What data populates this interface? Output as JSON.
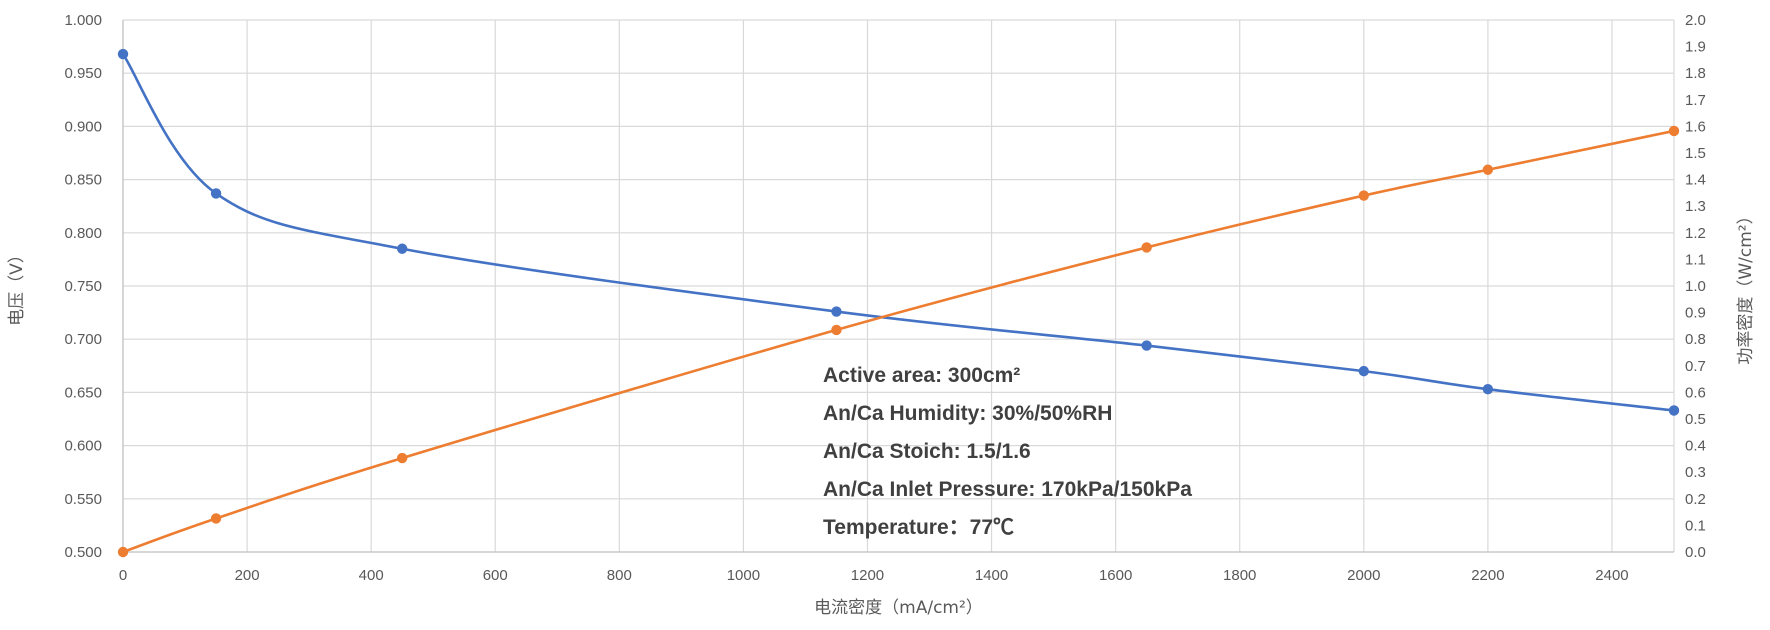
{
  "chart_data": {
    "type": "line",
    "title": "",
    "xlabel": "电流密度（mA/cm²）",
    "ylabel": "电压（V）",
    "y2label": "功率密度（W/cm²）",
    "xlim": [
      0,
      2500
    ],
    "ylim": [
      0.5,
      1.0
    ],
    "y2lim": [
      0.0,
      2.0
    ],
    "x_ticks": [
      0,
      200,
      400,
      600,
      800,
      1000,
      1200,
      1400,
      1600,
      1800,
      2000,
      2200,
      2400
    ],
    "y_ticks": [
      "0.500",
      "0.550",
      "0.600",
      "0.650",
      "0.700",
      "0.750",
      "0.800",
      "0.850",
      "0.900",
      "0.950",
      "1.000"
    ],
    "y2_ticks": [
      "0.0",
      "0.1",
      "0.2",
      "0.3",
      "0.4",
      "0.5",
      "0.6",
      "0.7",
      "0.8",
      "0.9",
      "1.0",
      "1.1",
      "1.2",
      "1.3",
      "1.4",
      "1.5",
      "1.6",
      "1.7",
      "1.8",
      "1.9",
      "2.0"
    ],
    "grid": true,
    "legend": "none",
    "series": [
      {
        "axis": "left",
        "color": "#4472C4",
        "x": [
          0,
          150,
          450,
          1150,
          1650,
          2000,
          2200,
          2500
        ],
        "y": [
          0.968,
          0.837,
          0.785,
          0.726,
          0.694,
          0.67,
          0.653,
          0.633
        ]
      },
      {
        "axis": "right",
        "color": "#ED7D31",
        "x": [
          0,
          150,
          450,
          1150,
          1650,
          2000,
          2200,
          2500
        ],
        "y": [
          0.0,
          0.126,
          0.353,
          0.835,
          1.145,
          1.34,
          1.437,
          1.583
        ]
      }
    ],
    "annotations": [
      "Active area: 300cm²",
      "An/Ca Humidity: 30%/50%RH",
      "An/Ca Stoich: 1.5/1.6",
      "An/Ca Inlet Pressure: 170kPa/150kPa",
      "Temperature：77℃"
    ]
  }
}
